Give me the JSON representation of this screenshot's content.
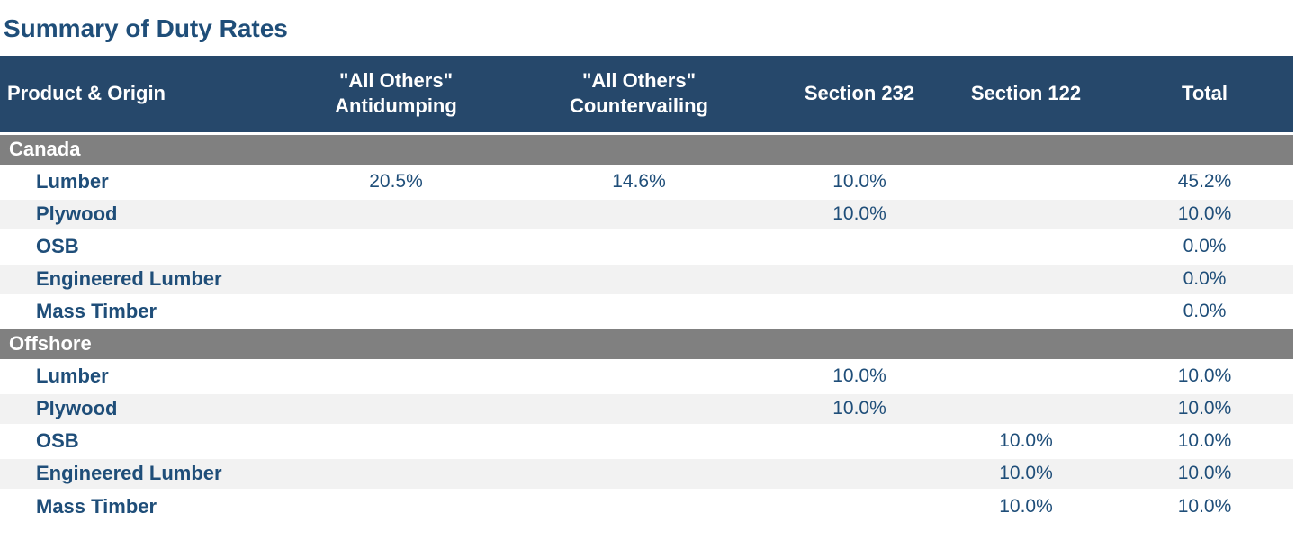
{
  "title": "Summary of Duty Rates",
  "colors": {
    "header_bg": "#26486B",
    "section_bg": "#808080",
    "stripe_bg": "#F2F2F2",
    "text_navy": "#1F4E79"
  },
  "table": {
    "columns": [
      {
        "key": "product",
        "label": "Product & Origin"
      },
      {
        "key": "antidumping",
        "lines": [
          "\"All Others\"",
          "Antidumping"
        ]
      },
      {
        "key": "countervailing",
        "lines": [
          "\"All Others\"",
          "Countervailing"
        ]
      },
      {
        "key": "section232",
        "label": "Section 232"
      },
      {
        "key": "section122",
        "label": "Section 122"
      },
      {
        "key": "total",
        "label": "Total"
      }
    ],
    "sections": [
      {
        "name": "Canada",
        "rows": [
          {
            "product": "Lumber",
            "antidumping": "20.5%",
            "countervailing": "14.6%",
            "section232": "10.0%",
            "section122": "",
            "total": "45.2%"
          },
          {
            "product": "Plywood",
            "antidumping": "",
            "countervailing": "",
            "section232": "10.0%",
            "section122": "",
            "total": "10.0%"
          },
          {
            "product": "OSB",
            "antidumping": "",
            "countervailing": "",
            "section232": "",
            "section122": "",
            "total": "0.0%"
          },
          {
            "product": "Engineered Lumber",
            "antidumping": "",
            "countervailing": "",
            "section232": "",
            "section122": "",
            "total": "0.0%"
          },
          {
            "product": "Mass Timber",
            "antidumping": "",
            "countervailing": "",
            "section232": "",
            "section122": "",
            "total": "0.0%"
          }
        ]
      },
      {
        "name": "Offshore",
        "rows": [
          {
            "product": "Lumber",
            "antidumping": "",
            "countervailing": "",
            "section232": "10.0%",
            "section122": "",
            "total": "10.0%"
          },
          {
            "product": "Plywood",
            "antidumping": "",
            "countervailing": "",
            "section232": "10.0%",
            "section122": "",
            "total": "10.0%"
          },
          {
            "product": "OSB",
            "antidumping": "",
            "countervailing": "",
            "section232": "",
            "section122": "10.0%",
            "total": "10.0%"
          },
          {
            "product": "Engineered Lumber",
            "antidumping": "",
            "countervailing": "",
            "section232": "",
            "section122": "10.0%",
            "total": "10.0%"
          },
          {
            "product": "Mass Timber",
            "antidumping": "",
            "countervailing": "",
            "section232": "",
            "section122": "10.0%",
            "total": "10.0%"
          }
        ]
      }
    ]
  },
  "chart_data": {
    "type": "table",
    "title": "Summary of Duty Rates",
    "columns": [
      "Product & Origin",
      "\"All Others\" Antidumping",
      "\"All Others\" Countervailing",
      "Section 232",
      "Section 122",
      "Total"
    ],
    "rows": [
      [
        "Canada",
        null,
        null,
        null,
        null,
        null
      ],
      [
        "Lumber",
        20.5,
        14.6,
        10.0,
        null,
        45.2
      ],
      [
        "Plywood",
        null,
        null,
        10.0,
        null,
        10.0
      ],
      [
        "OSB",
        null,
        null,
        null,
        null,
        0.0
      ],
      [
        "Engineered Lumber",
        null,
        null,
        null,
        null,
        0.0
      ],
      [
        "Mass Timber",
        null,
        null,
        null,
        null,
        0.0
      ],
      [
        "Offshore",
        null,
        null,
        null,
        null,
        null
      ],
      [
        "Lumber",
        null,
        null,
        10.0,
        null,
        10.0
      ],
      [
        "Plywood",
        null,
        null,
        10.0,
        null,
        10.0
      ],
      [
        "OSB",
        null,
        null,
        null,
        10.0,
        10.0
      ],
      [
        "Engineered Lumber",
        null,
        null,
        null,
        10.0,
        10.0
      ],
      [
        "Mass Timber",
        null,
        null,
        null,
        10.0,
        10.0
      ]
    ],
    "units": "percent"
  }
}
